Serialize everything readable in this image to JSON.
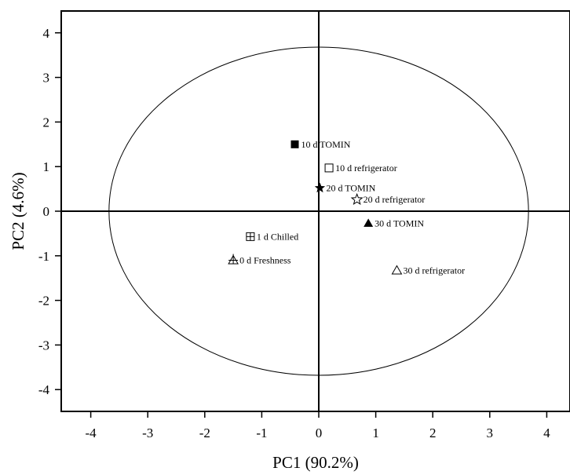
{
  "chart_data": {
    "type": "scatter",
    "title": "",
    "xlabel": "PC1 (90.2%)",
    "ylabel": "PC2 (4.6%)",
    "xlim": [
      -4.5,
      4.4
    ],
    "ylim": [
      -4.5,
      4.4
    ],
    "x_ticks": [
      -4,
      -3,
      -2,
      -1,
      0,
      1,
      2,
      3,
      4
    ],
    "y_ticks": [
      -4,
      -3,
      -2,
      -1,
      0,
      1,
      2,
      3,
      4
    ],
    "grid": false,
    "zero_lines": true,
    "ellipse": {
      "cx": 0,
      "cy": 0,
      "rx": 3.68,
      "ry": 3.68
    },
    "points": [
      {
        "label": "10 d TOMIN",
        "x": -0.42,
        "y": 1.5,
        "marker": "filled-square"
      },
      {
        "label": "10 d refrigerator",
        "x": 0.18,
        "y": 0.97,
        "marker": "open-square"
      },
      {
        "label": "20 d TOMIN",
        "x": 0.02,
        "y": 0.52,
        "marker": "filled-star"
      },
      {
        "label": "20 d refrigerator",
        "x": 0.67,
        "y": 0.26,
        "marker": "open-star"
      },
      {
        "label": "30 d TOMIN",
        "x": 0.87,
        "y": -0.27,
        "marker": "filled-triangle"
      },
      {
        "label": "1 d Chilled",
        "x": -1.2,
        "y": -0.57,
        "marker": "crossed-square"
      },
      {
        "label": "0 d Freshness",
        "x": -1.5,
        "y": -1.1,
        "marker": "crossed-triangle"
      },
      {
        "label": "30 d refrigerator",
        "x": 1.37,
        "y": -1.33,
        "marker": "open-triangle"
      }
    ]
  }
}
